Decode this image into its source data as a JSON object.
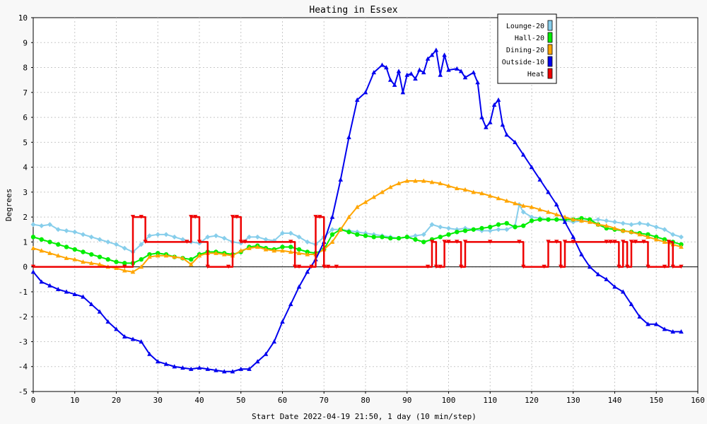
{
  "chart_data": {
    "type": "line",
    "title": "Heating in Essex",
    "xlabel": "Start Date 2022-04-19 21:50, 1 day (10 min/step)",
    "ylabel": "Degrees",
    "xlim": [
      0,
      160
    ],
    "ylim": [
      -5,
      10
    ],
    "x_ticks": [
      0,
      10,
      20,
      30,
      40,
      50,
      60,
      70,
      80,
      90,
      100,
      110,
      120,
      130,
      140,
      150,
      160
    ],
    "y_ticks": [
      -5,
      -4,
      -3,
      -2,
      -1,
      0,
      1,
      2,
      3,
      4,
      5,
      6,
      7,
      8,
      9,
      10
    ],
    "grid": true,
    "legend_position": "top-right",
    "series": [
      {
        "name": "Lounge-20",
        "color": "#87ceeb",
        "marker": "diamond",
        "x": [
          0,
          2,
          4,
          6,
          8,
          10,
          12,
          14,
          16,
          18,
          20,
          22,
          24,
          26,
          28,
          30,
          32,
          34,
          36,
          38,
          40,
          42,
          44,
          46,
          48,
          50,
          52,
          54,
          56,
          58,
          60,
          62,
          64,
          66,
          68,
          70,
          72,
          74,
          76,
          78,
          80,
          82,
          84,
          86,
          88,
          90,
          92,
          94,
          96,
          98,
          100,
          102,
          104,
          106,
          108,
          110,
          112,
          114,
          116,
          117,
          118,
          120,
          122,
          124,
          126,
          128,
          130,
          132,
          134,
          136,
          138,
          140,
          142,
          144,
          146,
          148,
          150,
          152,
          154,
          156
        ],
        "y": [
          1.7,
          1.65,
          1.7,
          1.5,
          1.45,
          1.4,
          1.3,
          1.2,
          1.1,
          1.0,
          0.9,
          0.75,
          0.6,
          0.9,
          1.25,
          1.3,
          1.3,
          1.2,
          1.1,
          1.0,
          0.95,
          1.2,
          1.25,
          1.15,
          1.0,
          0.95,
          1.2,
          1.2,
          1.1,
          1.05,
          1.35,
          1.35,
          1.2,
          1.0,
          0.9,
          1.2,
          1.5,
          1.5,
          1.45,
          1.4,
          1.35,
          1.3,
          1.25,
          1.2,
          1.15,
          1.2,
          1.25,
          1.3,
          1.7,
          1.6,
          1.55,
          1.5,
          1.55,
          1.5,
          1.45,
          1.45,
          1.5,
          1.5,
          1.65,
          2.5,
          2.2,
          2.0,
          1.95,
          1.9,
          1.9,
          1.85,
          1.8,
          1.85,
          1.85,
          1.9,
          1.85,
          1.8,
          1.75,
          1.7,
          1.75,
          1.7,
          1.6,
          1.5,
          1.3,
          1.2
        ]
      },
      {
        "name": "Hall-20",
        "color": "#00ee00",
        "marker": "circle",
        "x": [
          0,
          2,
          4,
          6,
          8,
          10,
          12,
          14,
          16,
          18,
          20,
          22,
          24,
          26,
          28,
          30,
          32,
          34,
          36,
          38,
          40,
          42,
          44,
          46,
          48,
          50,
          52,
          54,
          56,
          58,
          60,
          62,
          64,
          66,
          68,
          70,
          72,
          74,
          76,
          78,
          80,
          82,
          84,
          86,
          88,
          90,
          92,
          94,
          96,
          98,
          100,
          102,
          104,
          106,
          108,
          110,
          112,
          114,
          116,
          118,
          120,
          122,
          124,
          126,
          128,
          130,
          132,
          134,
          136,
          138,
          140,
          142,
          144,
          146,
          148,
          150,
          152,
          154,
          156
        ],
        "y": [
          1.2,
          1.1,
          1.0,
          0.9,
          0.8,
          0.7,
          0.6,
          0.5,
          0.4,
          0.3,
          0.2,
          0.15,
          0.15,
          0.3,
          0.5,
          0.55,
          0.5,
          0.4,
          0.35,
          0.3,
          0.5,
          0.6,
          0.6,
          0.55,
          0.5,
          0.6,
          0.8,
          0.85,
          0.75,
          0.7,
          0.8,
          0.8,
          0.7,
          0.6,
          0.55,
          0.7,
          1.3,
          1.5,
          1.4,
          1.3,
          1.25,
          1.2,
          1.2,
          1.15,
          1.15,
          1.2,
          1.1,
          1.0,
          1.1,
          1.2,
          1.3,
          1.4,
          1.45,
          1.5,
          1.55,
          1.6,
          1.7,
          1.75,
          1.6,
          1.65,
          1.85,
          1.9,
          1.9,
          1.9,
          1.9,
          1.9,
          1.95,
          1.9,
          1.7,
          1.55,
          1.5,
          1.45,
          1.4,
          1.35,
          1.3,
          1.2,
          1.1,
          1.0,
          0.9
        ]
      },
      {
        "name": "Dining-20",
        "color": "#ffa500",
        "marker": "triangle",
        "x": [
          0,
          2,
          4,
          6,
          8,
          10,
          12,
          14,
          16,
          18,
          20,
          22,
          24,
          26,
          28,
          30,
          32,
          34,
          36,
          38,
          40,
          42,
          44,
          46,
          48,
          50,
          52,
          54,
          56,
          58,
          60,
          62,
          64,
          66,
          68,
          70,
          72,
          74,
          76,
          78,
          80,
          82,
          84,
          86,
          88,
          90,
          92,
          94,
          96,
          98,
          100,
          102,
          104,
          106,
          108,
          110,
          112,
          114,
          116,
          118,
          120,
          122,
          124,
          126,
          128,
          130,
          132,
          134,
          136,
          138,
          140,
          142,
          144,
          146,
          148,
          150,
          152,
          154,
          156
        ],
        "y": [
          0.75,
          0.65,
          0.55,
          0.45,
          0.35,
          0.3,
          0.2,
          0.15,
          0.1,
          0.0,
          -0.05,
          -0.15,
          -0.2,
          0.0,
          0.4,
          0.45,
          0.45,
          0.4,
          0.35,
          0.1,
          0.45,
          0.55,
          0.55,
          0.5,
          0.45,
          0.65,
          0.75,
          0.8,
          0.7,
          0.65,
          0.65,
          0.6,
          0.55,
          0.5,
          0.5,
          0.7,
          1.0,
          1.5,
          2.0,
          2.4,
          2.6,
          2.8,
          3.0,
          3.2,
          3.35,
          3.45,
          3.45,
          3.45,
          3.4,
          3.35,
          3.25,
          3.15,
          3.1,
          3.0,
          2.95,
          2.85,
          2.75,
          2.65,
          2.55,
          2.45,
          2.4,
          2.3,
          2.2,
          2.1,
          2.0,
          1.9,
          1.85,
          1.8,
          1.7,
          1.65,
          1.55,
          1.45,
          1.4,
          1.3,
          1.2,
          1.1,
          1.0,
          0.9,
          0.8
        ]
      },
      {
        "name": "Outside-10",
        "color": "#0000ee",
        "marker": "triangle",
        "x": [
          0,
          2,
          4,
          6,
          8,
          10,
          12,
          14,
          16,
          18,
          20,
          22,
          24,
          26,
          28,
          30,
          32,
          34,
          36,
          38,
          40,
          42,
          44,
          46,
          48,
          50,
          52,
          54,
          56,
          58,
          60,
          62,
          64,
          66,
          68,
          70,
          72,
          74,
          76,
          78,
          80,
          82,
          84,
          85,
          86,
          87,
          88,
          89,
          90,
          91,
          92,
          93,
          94,
          95,
          96,
          97,
          98,
          99,
          100,
          102,
          103,
          104,
          106,
          107,
          108,
          109,
          110,
          111,
          112,
          113,
          114,
          116,
          118,
          120,
          122,
          124,
          126,
          128,
          130,
          132,
          134,
          136,
          138,
          140,
          142,
          144,
          146,
          148,
          150,
          152,
          154,
          156
        ],
        "y": [
          -0.2,
          -0.6,
          -0.75,
          -0.9,
          -1.0,
          -1.1,
          -1.2,
          -1.5,
          -1.8,
          -2.2,
          -2.5,
          -2.8,
          -2.9,
          -3.0,
          -3.5,
          -3.8,
          -3.9,
          -4.0,
          -4.05,
          -4.1,
          -4.05,
          -4.1,
          -4.15,
          -4.2,
          -4.2,
          -4.1,
          -4.1,
          -3.8,
          -3.5,
          -3.0,
          -2.2,
          -1.5,
          -0.8,
          -0.2,
          0.3,
          1.0,
          2.0,
          3.5,
          5.2,
          6.7,
          7.0,
          7.8,
          8.1,
          8.0,
          7.5,
          7.3,
          7.85,
          7.0,
          7.7,
          7.75,
          7.55,
          7.9,
          7.8,
          8.35,
          8.5,
          8.7,
          7.7,
          8.5,
          7.9,
          7.95,
          7.85,
          7.6,
          7.8,
          7.4,
          6.0,
          5.6,
          5.8,
          6.5,
          6.7,
          5.7,
          5.3,
          5.0,
          4.5,
          4.0,
          3.5,
          3.0,
          2.5,
          1.8,
          1.2,
          0.5,
          0.0,
          -0.3,
          -0.5,
          -0.8,
          -1.0,
          -1.5,
          -2.0,
          -2.3,
          -2.3,
          -2.5,
          -2.6,
          -2.6
        ]
      },
      {
        "name": "Heat",
        "color": "#ee0000",
        "marker": "triangle-down",
        "x": [
          0,
          22,
          24,
          26,
          27,
          37,
          38,
          39,
          40,
          42,
          47,
          48,
          49,
          50,
          51,
          62,
          63,
          64,
          67,
          68,
          69,
          70,
          71,
          73,
          95,
          96,
          97,
          98,
          99,
          100,
          102,
          103,
          104,
          110,
          117,
          118,
          123,
          124,
          126,
          127,
          128,
          130,
          138,
          139,
          140,
          141,
          142,
          143,
          144,
          145,
          147,
          148,
          152,
          153,
          154,
          156
        ],
        "y": [
          0,
          0,
          2,
          2,
          1,
          1,
          2,
          2,
          1,
          0,
          0,
          2,
          2,
          1,
          1,
          1,
          0,
          0,
          0,
          2,
          2,
          0,
          0,
          0,
          0,
          1,
          0,
          0,
          1,
          1,
          1,
          0,
          1,
          1,
          1,
          0,
          0,
          1,
          1,
          0,
          1,
          1,
          1,
          1,
          1,
          0,
          1,
          0,
          1,
          1,
          1,
          0,
          0,
          1,
          0,
          0
        ]
      }
    ]
  }
}
